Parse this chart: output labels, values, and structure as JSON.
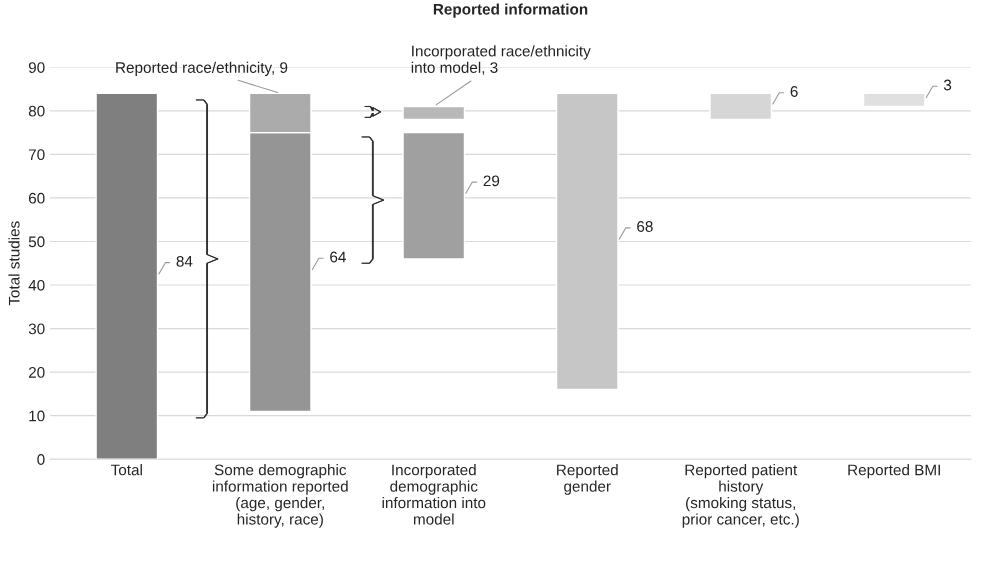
{
  "chart_data": {
    "type": "bar",
    "title": "Reported information",
    "ylabel": "Total studies",
    "categories": [
      "Total",
      "Some demographic\ninformation reported\n(age, gender,\nhistory, race)",
      "Incorporated\ndemographic\ninformation into\nmodel",
      "Reported\ngender",
      "Reported patient\nhistory\n(smoking status,\nprior cancer, etc.)",
      "Reported BMI"
    ],
    "series": [
      {
        "values": [
          84,
          64,
          29,
          68,
          6,
          3
        ],
        "base": [
          0,
          11,
          46,
          16,
          78,
          81
        ],
        "colors": [
          "#7f7f7f",
          "#959595",
          "#a0a0a0",
          "#c6c6c6",
          "#d6d6d6",
          "#e0e0e0"
        ],
        "value_labels": [
          "84",
          "64",
          "29",
          "68",
          "6",
          "3"
        ]
      },
      {
        "values": [
          null,
          9,
          3,
          null,
          null,
          null
        ],
        "base": [
          null,
          75,
          78,
          null,
          null,
          null
        ],
        "colors": [
          null,
          "#ababab",
          "#b8b8b8",
          null,
          null,
          null
        ],
        "value_labels": [
          null,
          "Reported race/ethnicity, 9",
          "Incorporated race/ethnicity\ninto model, 3",
          null,
          null,
          null
        ]
      }
    ],
    "ylim": [
      0,
      90
    ],
    "yticks": [
      0,
      10,
      20,
      30,
      40,
      50,
      60,
      70,
      80,
      90
    ],
    "grid": "y",
    "legend": false
  }
}
